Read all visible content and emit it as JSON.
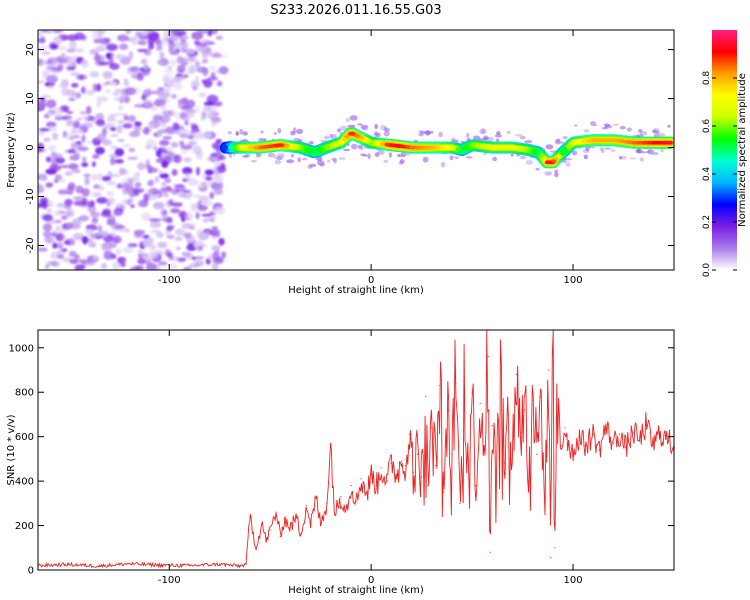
{
  "figure": {
    "title": "S233.2026.011.16.55.G03"
  },
  "chart_data": [
    {
      "type": "heatmap",
      "name": "spectrogram",
      "xlabel": "Height of straight line (km)",
      "ylabel": "Frequency (Hz)",
      "xlim": [
        -165,
        150
      ],
      "ylim": [
        -25,
        24
      ],
      "xticks": [
        -100,
        0,
        100
      ],
      "xtick_labels": [
        "-100",
        "0",
        "100"
      ],
      "yticks": [
        -20,
        -10,
        0,
        10,
        20
      ],
      "ytick_labels": [
        "-20",
        "-10",
        "0",
        "10",
        "20"
      ],
      "noise_region_x": [
        -165,
        -73
      ],
      "trace": {
        "x": [
          -72,
          -65,
          -55,
          -45,
          -35,
          -28,
          -22,
          -15,
          -10,
          -5,
          0,
          10,
          20,
          30,
          40,
          45,
          50,
          60,
          70,
          78,
          83,
          87,
          90,
          95,
          100,
          110,
          120,
          130,
          148
        ],
        "freq": [
          0,
          0,
          0,
          0.5,
          0,
          -1,
          0,
          1,
          3,
          2,
          1,
          0.5,
          0,
          0,
          0,
          -0.5,
          0.5,
          0,
          0,
          -0.5,
          -1,
          -3,
          -3,
          -1,
          1,
          1.5,
          1.5,
          1,
          1
        ],
        "amp": [
          0.3,
          0.7,
          0.85,
          0.9,
          0.6,
          0.5,
          0.6,
          0.7,
          0.9,
          0.8,
          0.6,
          0.95,
          0.85,
          0.8,
          0.7,
          0.5,
          0.6,
          0.7,
          0.7,
          0.6,
          0.5,
          0.9,
          0.9,
          0.5,
          0.7,
          0.8,
          0.8,
          0.85,
          0.95
        ]
      },
      "colorbar": {
        "label": "Normalized spectral amplitude",
        "range": [
          0,
          1
        ],
        "ticks": [
          0.0,
          0.2,
          0.4,
          0.6,
          0.8
        ],
        "tick_labels": [
          "0.0",
          "0.2",
          "0.4",
          "0.6",
          "0.8"
        ],
        "colors": [
          "#ffffff",
          "#a97ce8",
          "#7b1fe6",
          "#0000ff",
          "#00b5ff",
          "#00ffd0",
          "#00ff00",
          "#c8ff00",
          "#ffff00",
          "#ff9f00",
          "#ff0000",
          "#ff1f80"
        ]
      }
    },
    {
      "type": "line",
      "name": "snr",
      "xlabel": "Height of straight line (km)",
      "ylabel": "SNR (10 * v/v)",
      "xlim": [
        -165,
        150
      ],
      "ylim": [
        0,
        1080
      ],
      "xticks": [
        -100,
        0,
        100
      ],
      "xtick_labels": [
        "-100",
        "0",
        "100"
      ],
      "yticks": [
        0,
        200,
        400,
        600,
        800,
        1000
      ],
      "ytick_labels": [
        "0",
        "200",
        "400",
        "600",
        "800",
        "1000"
      ],
      "color": "#ee2222",
      "series": [
        {
          "name": "SNR",
          "x": [
            -165,
            -150,
            -135,
            -120,
            -105,
            -90,
            -75,
            -65,
            -62,
            -60,
            -57,
            -54,
            -52,
            -50,
            -47,
            -45,
            -43,
            -40,
            -37,
            -35,
            -32,
            -30,
            -27,
            -25,
            -22,
            -20,
            -18,
            -15,
            -12,
            -10,
            -7,
            -5,
            -2,
            0,
            3,
            5,
            8,
            10,
            13,
            15,
            17,
            19,
            21,
            23,
            25,
            27,
            28,
            30,
            32,
            34,
            36,
            38,
            40,
            42,
            44,
            46,
            48,
            50,
            52,
            54,
            56,
            58,
            59,
            60,
            62,
            64,
            66,
            68,
            70,
            72,
            74,
            76,
            78,
            80,
            82,
            84,
            86,
            88,
            89,
            90,
            91,
            92,
            94,
            96,
            98,
            100,
            103,
            106,
            110,
            113,
            116,
            120,
            123,
            126,
            130,
            133,
            136,
            140,
            143,
            146,
            150
          ],
          "y": [
            20,
            25,
            18,
            28,
            22,
            20,
            26,
            18,
            25,
            240,
            100,
            210,
            130,
            180,
            260,
            150,
            230,
            190,
            240,
            160,
            290,
            210,
            320,
            200,
            300,
            560,
            250,
            330,
            280,
            380,
            310,
            410,
            340,
            430,
            380,
            460,
            400,
            480,
            430,
            490,
            470,
            610,
            440,
            520,
            420,
            780,
            380,
            640,
            470,
            830,
            350,
            720,
            520,
            840,
            300,
            760,
            500,
            800,
            380,
            750,
            560,
            960,
            80,
            650,
            450,
            900,
            480,
            700,
            520,
            880,
            620,
            720,
            400,
            830,
            520,
            780,
            300,
            900,
            55,
            1080,
            100,
            700,
            560,
            640,
            560,
            530,
            600,
            560,
            610,
            540,
            640,
            570,
            610,
            550,
            620,
            580,
            650,
            560,
            620,
            590,
            560
          ]
        }
      ]
    }
  ]
}
